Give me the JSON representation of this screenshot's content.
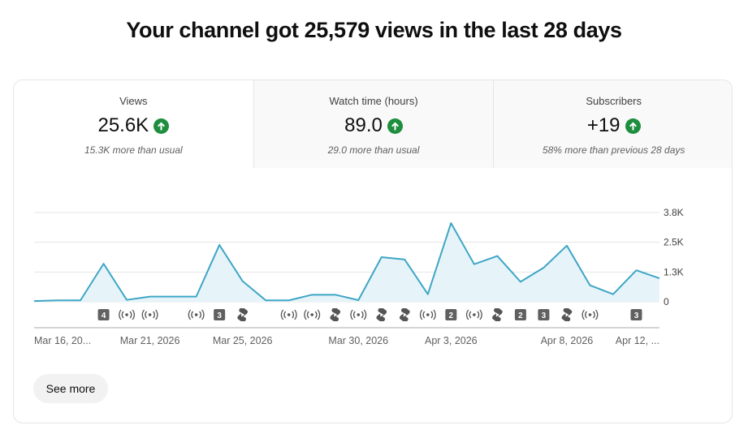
{
  "headline": "Your channel got 25,579 views in the last 28 days",
  "tabs": [
    {
      "label": "Views",
      "value": "25.6K",
      "sub": "15.3K more than usual",
      "trend_icon": "arrow-up-icon"
    },
    {
      "label": "Watch time (hours)",
      "value": "89.0",
      "sub": "29.0 more than usual",
      "trend_icon": "arrow-up-icon"
    },
    {
      "label": "Subscribers",
      "value": "+19",
      "sub": "58% more than previous 28 days",
      "trend_icon": "arrow-up-icon"
    }
  ],
  "see_more_label": "See more",
  "colors": {
    "line": "#3ea6c5",
    "area": "#e6f4fa",
    "trend_up": "#1e8e3e",
    "grid": "#e5e5e5",
    "marker": "#606060"
  },
  "chart_data": {
    "type": "area",
    "title": "",
    "xlabel": "",
    "ylabel": "",
    "ylim": [
      0,
      3800
    ],
    "y_ticks": [
      {
        "value": 0,
        "label": "0"
      },
      {
        "value": 1267,
        "label": "1.3K"
      },
      {
        "value": 2533,
        "label": "2.5K"
      },
      {
        "value": 3800,
        "label": "3.8K"
      }
    ],
    "x_tick_labels": [
      {
        "index": 0,
        "label": "Mar 16, 20..."
      },
      {
        "index": 5,
        "label": "Mar 21, 2026"
      },
      {
        "index": 9,
        "label": "Mar 25, 2026"
      },
      {
        "index": 14,
        "label": "Mar 30, 2026"
      },
      {
        "index": 18,
        "label": "Apr 3, 2026"
      },
      {
        "index": 23,
        "label": "Apr 8, 2026"
      },
      {
        "index": 27,
        "label": "Apr 12, ..."
      }
    ],
    "series": [
      {
        "values": [
          30,
          60,
          60,
          1620,
          80,
          220,
          220,
          220,
          2420,
          880,
          60,
          60,
          300,
          300,
          70,
          1900,
          1800,
          320,
          3350,
          1600,
          1950,
          850,
          1450,
          2390,
          700,
          320,
          1340,
          1000
        ]
      }
    ],
    "upload_markers": [
      {
        "index": 3,
        "kind": "count",
        "label": "4"
      },
      {
        "index": 4,
        "kind": "live"
      },
      {
        "index": 5,
        "kind": "live"
      },
      {
        "index": 7,
        "kind": "live"
      },
      {
        "index": 8,
        "kind": "count",
        "label": "3"
      },
      {
        "index": 9,
        "kind": "short"
      },
      {
        "index": 11,
        "kind": "live"
      },
      {
        "index": 12,
        "kind": "live"
      },
      {
        "index": 13,
        "kind": "short"
      },
      {
        "index": 14,
        "kind": "live"
      },
      {
        "index": 15,
        "kind": "short"
      },
      {
        "index": 16,
        "kind": "short"
      },
      {
        "index": 17,
        "kind": "live"
      },
      {
        "index": 18,
        "kind": "count",
        "label": "2"
      },
      {
        "index": 19,
        "kind": "live"
      },
      {
        "index": 20,
        "kind": "short"
      },
      {
        "index": 21,
        "kind": "count",
        "label": "2"
      },
      {
        "index": 22,
        "kind": "count",
        "label": "3"
      },
      {
        "index": 23,
        "kind": "short"
      },
      {
        "index": 24,
        "kind": "live"
      },
      {
        "index": 26,
        "kind": "count",
        "label": "3"
      }
    ]
  }
}
